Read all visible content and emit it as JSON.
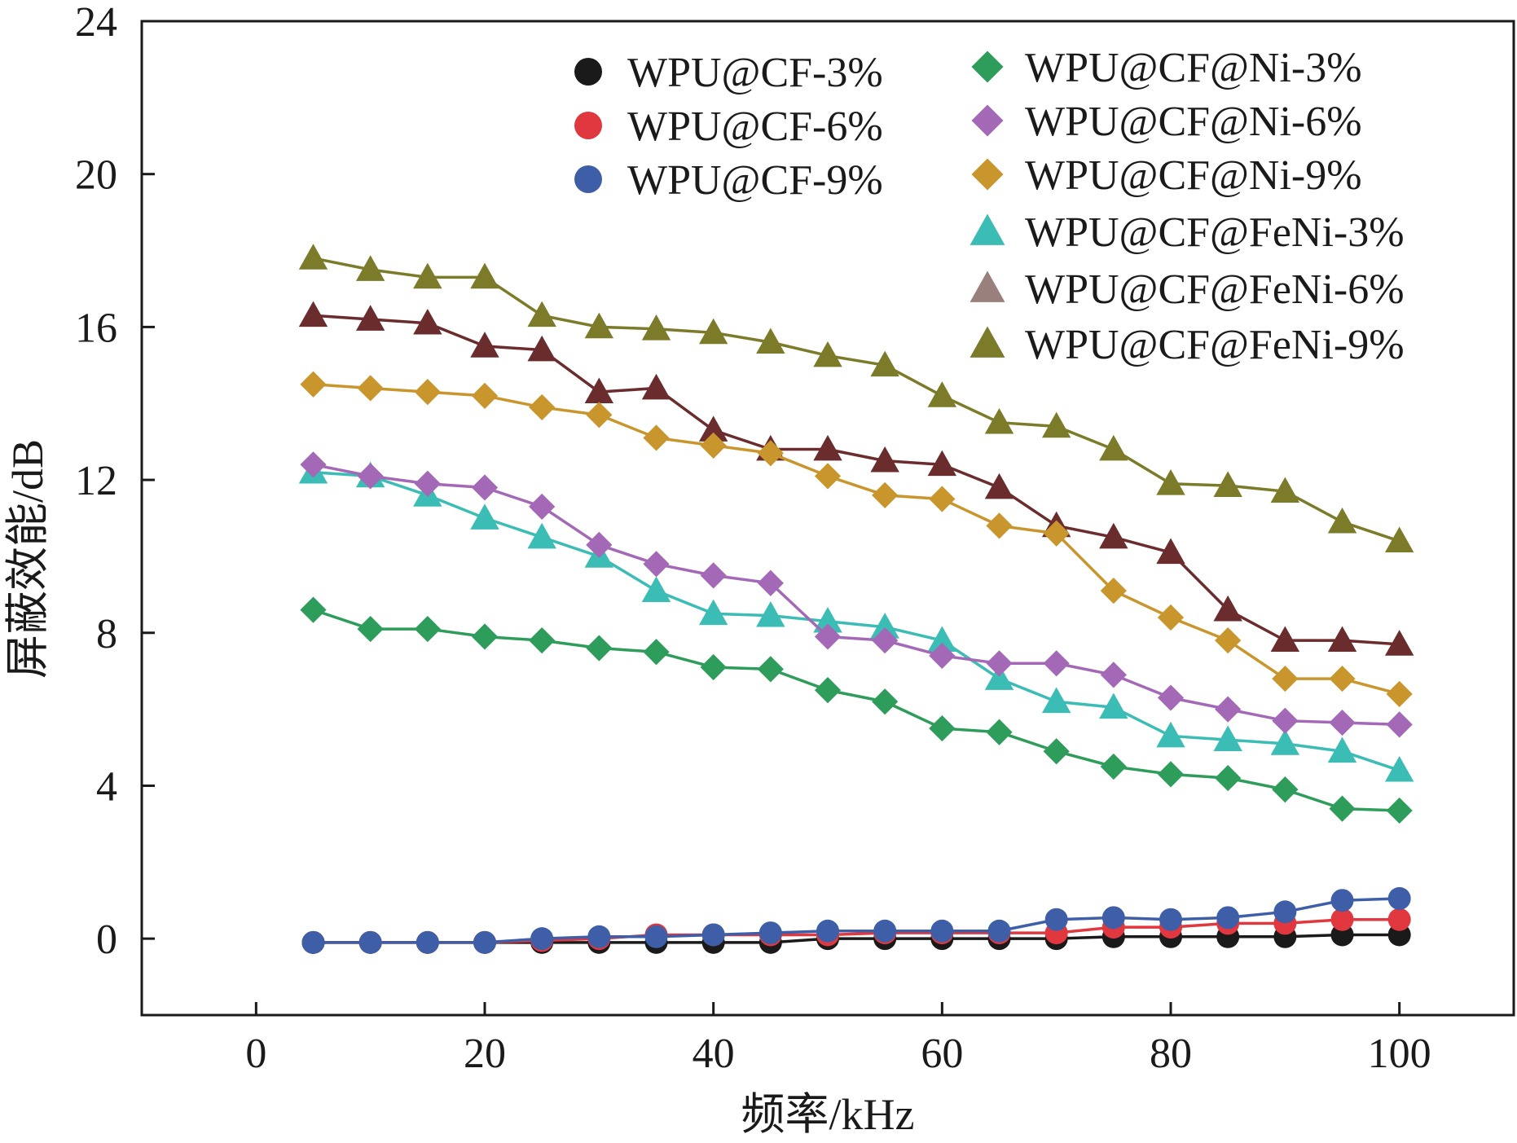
{
  "chart_data": {
    "type": "line",
    "xlabel": "频率/kHz",
    "ylabel": "屏蔽效能/dB",
    "xlim": [
      -10,
      110
    ],
    "ylim": [
      -2,
      24
    ],
    "xticks": [
      0,
      20,
      40,
      60,
      80,
      100
    ],
    "yticks": [
      0,
      4,
      8,
      12,
      16,
      20,
      24
    ],
    "x": [
      5,
      10,
      15,
      20,
      25,
      30,
      35,
      40,
      45,
      50,
      55,
      60,
      65,
      70,
      75,
      80,
      85,
      90,
      95,
      100
    ],
    "legend_position": "top-right",
    "series": [
      {
        "name": "WPU@CF-3%",
        "marker": "circle",
        "color": "#1a1a1a",
        "values": [
          -0.1,
          -0.1,
          -0.1,
          -0.1,
          -0.1,
          -0.1,
          -0.1,
          -0.1,
          -0.1,
          0.0,
          0.0,
          0.0,
          0.0,
          0.0,
          0.05,
          0.05,
          0.05,
          0.05,
          0.1,
          0.1
        ]
      },
      {
        "name": "WPU@CF-6%",
        "marker": "circle",
        "color": "#e0383e",
        "values": [
          -0.1,
          -0.1,
          -0.1,
          -0.1,
          -0.05,
          0.0,
          0.1,
          0.1,
          0.1,
          0.1,
          0.15,
          0.15,
          0.15,
          0.15,
          0.3,
          0.3,
          0.4,
          0.4,
          0.5,
          0.5
        ]
      },
      {
        "name": "WPU@CF-9%",
        "marker": "circle",
        "color": "#3f5ea8",
        "values": [
          -0.1,
          -0.1,
          -0.1,
          -0.1,
          0.0,
          0.05,
          0.05,
          0.1,
          0.15,
          0.2,
          0.2,
          0.2,
          0.2,
          0.5,
          0.55,
          0.5,
          0.55,
          0.7,
          1.0,
          1.05
        ]
      },
      {
        "name": "WPU@CF@Ni-3%",
        "marker": "diamond",
        "color": "#2e9c5a",
        "values": [
          8.6,
          8.1,
          8.1,
          7.9,
          7.8,
          7.6,
          7.5,
          7.1,
          7.05,
          6.5,
          6.2,
          5.5,
          5.4,
          4.9,
          4.5,
          4.3,
          4.2,
          3.9,
          3.4,
          3.35
        ]
      },
      {
        "name": "WPU@CF@Ni-6%",
        "marker": "diamond",
        "color": "#a469b6",
        "values": [
          12.4,
          12.1,
          11.9,
          11.8,
          11.3,
          10.3,
          9.8,
          9.5,
          9.3,
          7.9,
          7.8,
          7.4,
          7.2,
          7.2,
          6.9,
          6.3,
          6.0,
          5.7,
          5.65,
          5.6
        ]
      },
      {
        "name": "WPU@CF@Ni-9%",
        "marker": "diamond",
        "color": "#c9962e",
        "values": [
          14.5,
          14.4,
          14.3,
          14.2,
          13.9,
          13.7,
          13.1,
          12.9,
          12.7,
          12.1,
          11.6,
          11.5,
          10.8,
          10.6,
          9.1,
          8.4,
          7.8,
          6.8,
          6.8,
          6.4
        ]
      },
      {
        "name": "WPU@CF@FeNi-3%",
        "marker": "triangle",
        "color": "#3bbcb4",
        "values": [
          12.2,
          12.1,
          11.6,
          11.0,
          10.5,
          10.0,
          9.1,
          8.5,
          8.45,
          8.3,
          8.15,
          7.8,
          6.8,
          6.2,
          6.05,
          5.3,
          5.2,
          5.1,
          4.9,
          4.4
        ]
      },
      {
        "name": "WPU@CF@FeNi-6%",
        "marker": "triangle",
        "color": "#6a2c2c",
        "values": [
          16.3,
          16.2,
          16.1,
          15.5,
          15.4,
          14.3,
          14.4,
          13.3,
          12.8,
          12.8,
          12.5,
          12.4,
          11.8,
          10.8,
          10.5,
          10.1,
          8.6,
          7.8,
          7.8,
          7.7
        ]
      },
      {
        "name": "WPU@CF@FeNi-9%",
        "marker": "triangle",
        "color": "#7b7b2a",
        "values": [
          17.8,
          17.5,
          17.3,
          17.3,
          16.3,
          16.0,
          15.95,
          15.85,
          15.6,
          15.25,
          15.0,
          14.2,
          13.5,
          13.4,
          12.8,
          11.9,
          11.85,
          11.7,
          10.9,
          10.4
        ]
      }
    ],
    "legend_marker_colors": {
      "WPU@CF@FeNi-6%": "#9a807c"
    }
  }
}
